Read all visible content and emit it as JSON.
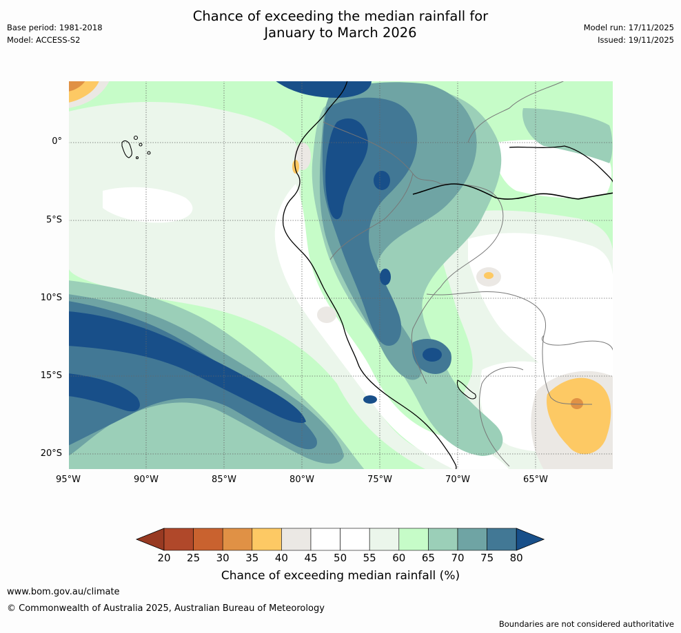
{
  "title": {
    "line1": "Chance of exceeding the median rainfall for",
    "line2": "January to March 2026"
  },
  "meta": {
    "base_period": "Base period: 1981-2018",
    "model": "Model: ACCESS-S2",
    "model_run": "Model run: 17/11/2025",
    "issued": "Issued: 19/11/2025"
  },
  "map": {
    "lat_labels": [
      "0°",
      "5°S",
      "10°S",
      "15°S",
      "20°S"
    ],
    "lon_labels": [
      "95°W",
      "90°W",
      "85°W",
      "80°W",
      "75°W",
      "70°W",
      "65°W"
    ]
  },
  "colorbar": {
    "title": "Chance of exceeding median rainfall (%)",
    "labels": [
      "20",
      "25",
      "30",
      "35",
      "40",
      "45",
      "50",
      "55",
      "60",
      "65",
      "70",
      "75",
      "80"
    ],
    "colors": [
      "#983a22",
      "#b0482a",
      "#c9622f",
      "#e09145",
      "#fdc964",
      "#ebe8e4",
      "#ffffff",
      "#ffffff",
      "#ebf6eb",
      "#c6fcc8",
      "#9bcfb8",
      "#6fa4a4",
      "#427895",
      "#184f89"
    ]
  },
  "footer": {
    "url": "www.bom.gov.au/climate",
    "copyright": "© Commonwealth of Australia 2025, Australian Bureau of Meteorology",
    "disclaimer": "Boundaries are not considered authoritative"
  }
}
